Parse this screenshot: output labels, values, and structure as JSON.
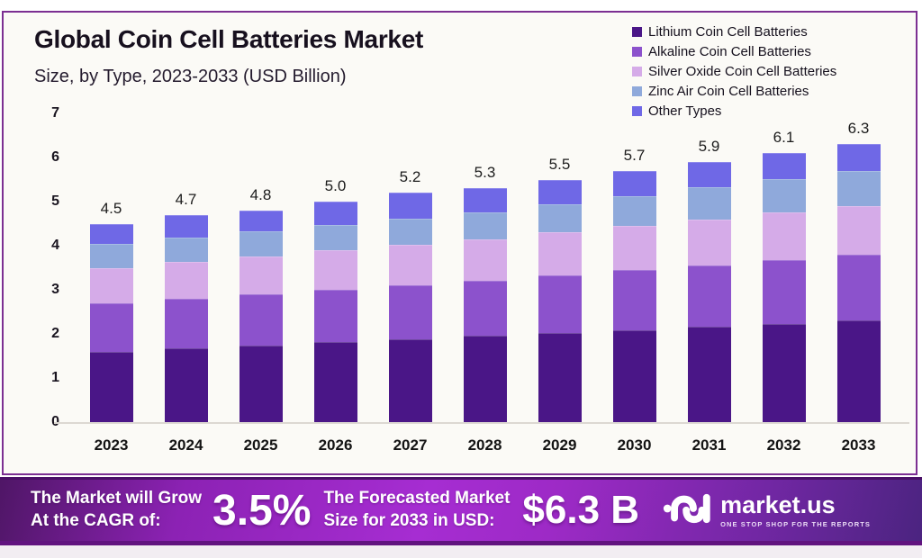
{
  "header": {
    "title": "Global Coin Cell Batteries Market",
    "subtitle": "Size, by Type, 2023-2033 (USD Billion)"
  },
  "chart_data": {
    "type": "bar",
    "stacked": true,
    "title": "Global Coin Cell Batteries Market Size, by Type, 2023-2033 (USD Billion)",
    "xlabel": "",
    "ylabel": "",
    "ylim": [
      0,
      7
    ],
    "yticks": [
      0,
      1,
      2,
      3,
      4,
      5,
      6,
      7
    ],
    "grid": false,
    "legend_position": "top-right",
    "categories": [
      "2023",
      "2024",
      "2025",
      "2026",
      "2027",
      "2028",
      "2029",
      "2030",
      "2031",
      "2032",
      "2033"
    ],
    "totals": [
      4.5,
      4.7,
      4.8,
      5.0,
      5.2,
      5.3,
      5.5,
      5.7,
      5.9,
      6.1,
      6.3
    ],
    "total_labels": [
      "4.5",
      "4.7",
      "4.8",
      "5.0",
      "5.2",
      "5.3",
      "5.5",
      "5.7",
      "5.9",
      "6.1",
      "6.3"
    ],
    "series": [
      {
        "name": "Lithium Coin Cell Batteries",
        "color": "#4a1687",
        "values": [
          1.6,
          1.67,
          1.74,
          1.81,
          1.88,
          1.95,
          2.02,
          2.09,
          2.16,
          2.23,
          2.3
        ]
      },
      {
        "name": "Alkaline Coin Cell Batteries",
        "color": "#8c52cc",
        "values": [
          1.1,
          1.13,
          1.16,
          1.19,
          1.22,
          1.25,
          1.3,
          1.35,
          1.4,
          1.45,
          1.5
        ]
      },
      {
        "name": "Silver Oxide Coin Cell Batteries",
        "color": "#d5abe8",
        "values": [
          0.8,
          0.83,
          0.86,
          0.89,
          0.92,
          0.95,
          0.98,
          1.01,
          1.04,
          1.07,
          1.1
        ]
      },
      {
        "name": "Zinc Air Coin Cell Batteries",
        "color": "#8fa9db",
        "values": [
          0.55,
          0.56,
          0.57,
          0.58,
          0.59,
          0.6,
          0.64,
          0.68,
          0.72,
          0.76,
          0.8
        ]
      },
      {
        "name": "Other Types",
        "color": "#6f68e6",
        "values": [
          0.45,
          0.51,
          0.47,
          0.53,
          0.59,
          0.55,
          0.56,
          0.57,
          0.58,
          0.59,
          0.6
        ]
      }
    ]
  },
  "footer": {
    "cagr_label_line1": "The Market will Grow",
    "cagr_label_line2": "At the CAGR of:",
    "cagr_value": "3.5%",
    "forecast_label_line1": "The Forecasted Market",
    "forecast_label_line2": "Size for 2033 in USD:",
    "forecast_value": "$6.3 B",
    "brand_name": "market.us",
    "brand_tagline": "ONE STOP SHOP FOR THE REPORTS"
  },
  "colors": {
    "card_border": "#7c2f92",
    "card_background": "#fbfaf6",
    "banner_gradient_mid": "#a62dd2",
    "banner_gradient_edge": "#4f1666",
    "axis_line": "#dcd8d2"
  }
}
